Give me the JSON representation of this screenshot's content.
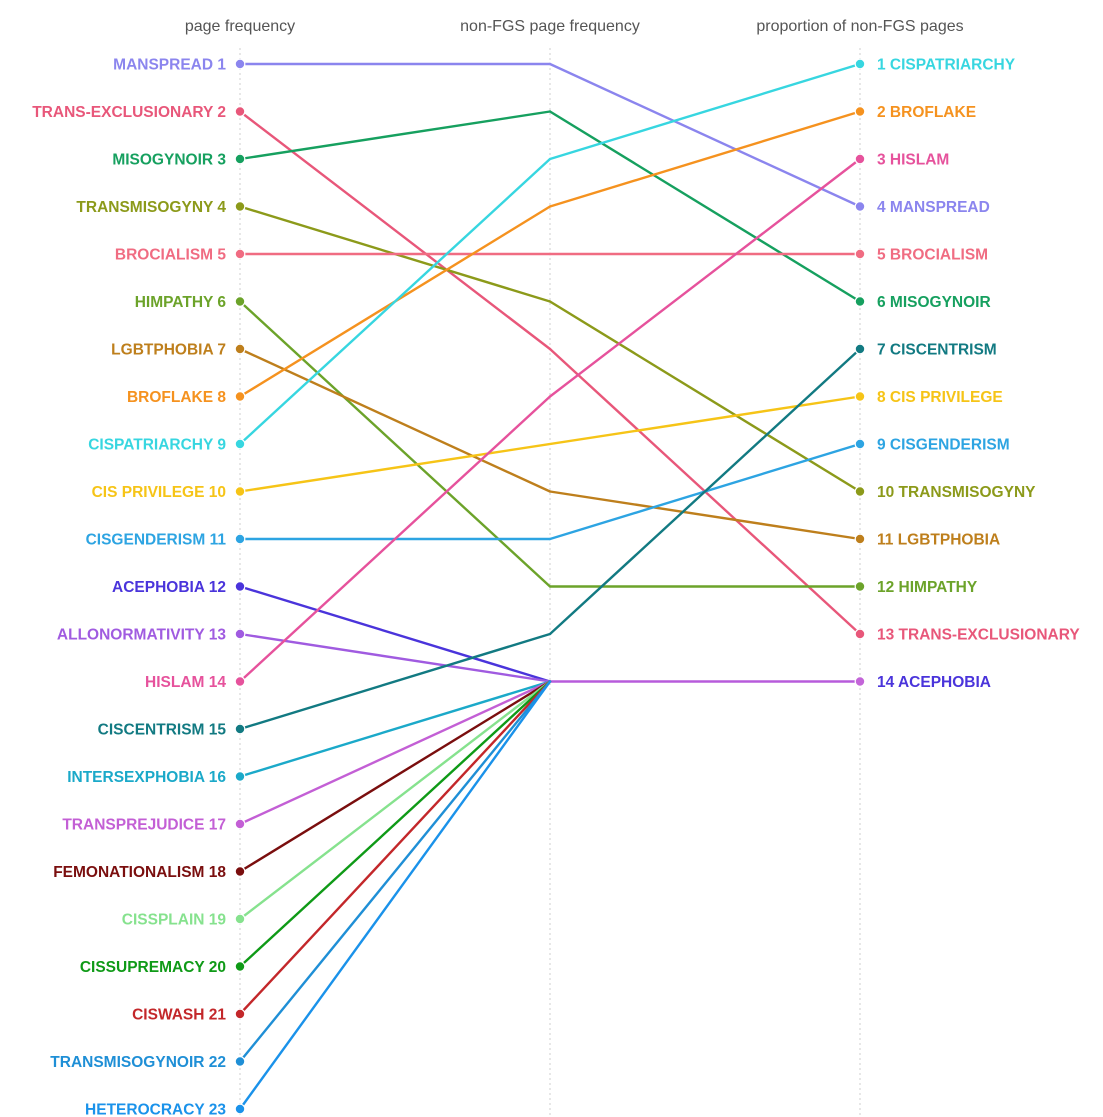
{
  "chart_data": {
    "type": "bump",
    "columns": [
      "page frequency",
      "non-FGS page frequency",
      "proportion of non-FGS pages"
    ],
    "series": [
      {
        "name": "MANSPREAD",
        "color": "#8B85EE",
        "ranks": [
          1,
          1,
          4
        ]
      },
      {
        "name": "TRANS-EXCLUSIONARY",
        "color": "#E8577A",
        "ranks": [
          2,
          7,
          13
        ]
      },
      {
        "name": "MISOGYNOIR",
        "color": "#16A05F",
        "ranks": [
          3,
          2,
          6
        ]
      },
      {
        "name": "TRANSMISOGYNY",
        "color": "#8C9A1A",
        "ranks": [
          4,
          6,
          10
        ]
      },
      {
        "name": "BROCIALISM",
        "color": "#F06C82",
        "ranks": [
          5,
          5,
          5
        ]
      },
      {
        "name": "HIMPATHY",
        "color": "#6CA32A",
        "ranks": [
          6,
          12,
          12
        ]
      },
      {
        "name": "LGBTPHOBIA",
        "color": "#BE7F1C",
        "ranks": [
          7,
          10,
          11
        ]
      },
      {
        "name": "BROFLAKE",
        "color": "#F5921F",
        "ranks": [
          8,
          4,
          2
        ]
      },
      {
        "name": "CISPATRIARCHY",
        "color": "#37D6E0",
        "ranks": [
          9,
          3,
          1
        ]
      },
      {
        "name": "CIS PRIVILEGE",
        "color": "#F6C417",
        "ranks": [
          10,
          null,
          8
        ]
      },
      {
        "name": "CISGENDERISM",
        "color": "#2DA4E2",
        "ranks": [
          11,
          11,
          9
        ]
      },
      {
        "name": "ACEPHOBIA",
        "color": "#4A34DB",
        "ranks": [
          12,
          14,
          14
        ]
      },
      {
        "name": "ALLONORMATIVITY",
        "color": "#A05BE0",
        "ranks": [
          13,
          14,
          null
        ]
      },
      {
        "name": "HISLAM",
        "color": "#E6529C",
        "ranks": [
          14,
          8,
          3
        ]
      },
      {
        "name": "CISCENTRISM",
        "color": "#127A82",
        "ranks": [
          15,
          13,
          7
        ]
      },
      {
        "name": "INTERSEXPHOBIA",
        "color": "#1BA9C9",
        "ranks": [
          16,
          14,
          null
        ]
      },
      {
        "name": "TRANSPREJUDICE",
        "color": "#C35FD5",
        "ranks": [
          17,
          14,
          null
        ]
      },
      {
        "name": "FEMONATIONALISM",
        "color": "#7A0E0E",
        "ranks": [
          18,
          14,
          null
        ]
      },
      {
        "name": "CISSPLAIN",
        "color": "#86E28E",
        "ranks": [
          19,
          14,
          null
        ]
      },
      {
        "name": "CISSUPREMACY",
        "color": "#0F9A17",
        "ranks": [
          20,
          14,
          null
        ]
      },
      {
        "name": "CISWASH",
        "color": "#C3272A",
        "ranks": [
          21,
          14,
          null
        ]
      },
      {
        "name": "TRANSMISOGYNOIR",
        "color": "#1F8FD6",
        "ranks": [
          22,
          14,
          null
        ]
      },
      {
        "name": "HETEROCRACY",
        "color": "#1A92EA",
        "ranks": [
          23,
          14,
          null
        ]
      }
    ],
    "right_labels": [
      {
        "rank": 1,
        "name": "CISPATRIARCHY",
        "color": "#37D6E0"
      },
      {
        "rank": 2,
        "name": "BROFLAKE",
        "color": "#F5921F"
      },
      {
        "rank": 3,
        "name": "HISLAM",
        "color": "#E6529C"
      },
      {
        "rank": 4,
        "name": "MANSPREAD",
        "color": "#8B85EE"
      },
      {
        "rank": 5,
        "name": "BROCIALISM",
        "color": "#F06C82"
      },
      {
        "rank": 6,
        "name": "MISOGYNOIR",
        "color": "#16A05F"
      },
      {
        "rank": 7,
        "name": "CISCENTRISM",
        "color": "#127A82"
      },
      {
        "rank": 8,
        "name": "CIS PRIVILEGE",
        "color": "#F6C417"
      },
      {
        "rank": 9,
        "name": "CISGENDERISM",
        "color": "#2DA4E2"
      },
      {
        "rank": 10,
        "name": "TRANSMISOGYNY",
        "color": "#8C9A1A"
      },
      {
        "rank": 11,
        "name": "LGBTPHOBIA",
        "color": "#BE7F1C"
      },
      {
        "rank": 12,
        "name": "HIMPATHY",
        "color": "#6CA32A"
      },
      {
        "rank": 13,
        "name": "TRANS-EXCLUSIONARY",
        "color": "#E8577A"
      },
      {
        "rank": 14,
        "name": "ACEPHOBIA",
        "color": "#4A34DB"
      }
    ],
    "right_dot_colors": {
      "14": "#C365D8"
    },
    "rank_14_right_line_color": "#B75BDB",
    "grid": "vertical dotted lines at each column"
  }
}
